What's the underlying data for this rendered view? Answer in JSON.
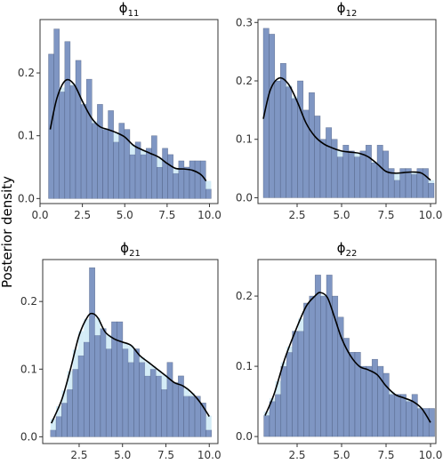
{
  "ylabel": "Posterior density",
  "colors": {
    "bar_fill": "#7f96c3",
    "bar_stroke": "#3b4a6b",
    "density_fill": "#cde9f6",
    "curve": "#000000",
    "panel_border": "#333333"
  },
  "chart_data": [
    {
      "type": "bar",
      "title_symbol": "ϕ",
      "title_sub": "11",
      "xlim": [
        0.0,
        10.5
      ],
      "ylim": [
        -0.008,
        0.285
      ],
      "xticks": [
        0.0,
        2.5,
        5.0,
        7.5,
        10.0
      ],
      "xtick_labels": [
        "0.0",
        "2.5",
        "5.0",
        "7.5",
        "10.0"
      ],
      "yticks": [
        0.0,
        0.1,
        0.2
      ],
      "ytick_labels": [
        "0.0",
        "0.1",
        "0.2"
      ],
      "bin_width": 0.32,
      "bin_starts": [
        0.5,
        0.82,
        1.14,
        1.46,
        1.78,
        2.1,
        2.42,
        2.74,
        3.06,
        3.38,
        3.7,
        4.02,
        4.34,
        4.66,
        4.98,
        5.3,
        5.62,
        5.94,
        6.26,
        6.58,
        6.9,
        7.22,
        7.54,
        7.86,
        8.18,
        8.5,
        8.82,
        9.14,
        9.46,
        9.78
      ],
      "bar_heights": [
        0.23,
        0.27,
        0.17,
        0.25,
        0.18,
        0.22,
        0.15,
        0.19,
        0.12,
        0.15,
        0.11,
        0.14,
        0.09,
        0.12,
        0.11,
        0.07,
        0.09,
        0.07,
        0.08,
        0.1,
        0.05,
        0.08,
        0.07,
        0.04,
        0.06,
        0.05,
        0.06,
        0.06,
        0.06,
        0.015
      ],
      "density_x": [
        0.6,
        1.0,
        1.5,
        2.0,
        2.5,
        3.0,
        3.5,
        4.0,
        4.5,
        5.0,
        5.5,
        6.0,
        6.5,
        7.0,
        7.5,
        8.0,
        8.5,
        9.0,
        9.5,
        9.8
      ],
      "density_y": [
        0.11,
        0.16,
        0.188,
        0.182,
        0.155,
        0.13,
        0.115,
        0.11,
        0.105,
        0.098,
        0.085,
        0.078,
        0.072,
        0.066,
        0.056,
        0.048,
        0.047,
        0.045,
        0.038,
        0.028
      ]
    },
    {
      "type": "bar",
      "title_symbol": "ϕ",
      "title_sub": "12",
      "xlim": [
        0.3,
        10.3
      ],
      "ylim": [
        -0.01,
        0.305
      ],
      "xticks": [
        2.5,
        5.0,
        7.5,
        10.0
      ],
      "xtick_labels": [
        "2.5",
        "5.0",
        "7.5",
        "10.0"
      ],
      "yticks": [
        0.0,
        0.1,
        0.2,
        0.3
      ],
      "ytick_labels": [
        "0.0",
        "0.1",
        "0.2",
        "0.3"
      ],
      "bin_width": 0.32,
      "bin_starts": [
        0.6,
        0.92,
        1.24,
        1.56,
        1.88,
        2.2,
        2.52,
        2.84,
        3.16,
        3.48,
        3.8,
        4.12,
        4.44,
        4.76,
        5.08,
        5.4,
        5.72,
        6.04,
        6.36,
        6.68,
        7.0,
        7.32,
        7.64,
        7.96,
        8.28,
        8.6,
        8.92,
        9.24,
        9.56,
        9.88
      ],
      "bar_heights": [
        0.29,
        0.28,
        0.2,
        0.23,
        0.19,
        0.17,
        0.2,
        0.15,
        0.18,
        0.14,
        0.1,
        0.12,
        0.1,
        0.07,
        0.09,
        0.08,
        0.07,
        0.08,
        0.09,
        0.06,
        0.09,
        0.08,
        0.05,
        0.03,
        0.05,
        0.05,
        0.04,
        0.05,
        0.05,
        0.025
      ],
      "density_x": [
        0.6,
        1.0,
        1.5,
        2.0,
        2.5,
        3.0,
        3.5,
        4.0,
        4.5,
        5.0,
        5.5,
        6.0,
        6.5,
        7.0,
        7.5,
        8.0,
        8.5,
        9.0,
        9.5,
        10.0
      ],
      "density_y": [
        0.135,
        0.185,
        0.205,
        0.195,
        0.165,
        0.128,
        0.105,
        0.092,
        0.085,
        0.08,
        0.078,
        0.076,
        0.07,
        0.058,
        0.045,
        0.042,
        0.043,
        0.044,
        0.042,
        0.03
      ]
    },
    {
      "type": "bar",
      "title_symbol": "ϕ",
      "title_sub": "21",
      "xlim": [
        0.4,
        10.5
      ],
      "ylim": [
        -0.01,
        0.262
      ],
      "xticks": [
        2.5,
        5.0,
        7.5,
        10.0
      ],
      "xtick_labels": [
        "2.5",
        "5.0",
        "7.5",
        "10.0"
      ],
      "yticks": [
        0.0,
        0.1,
        0.2
      ],
      "ytick_labels": [
        "0.0",
        "0.1",
        "0.2"
      ],
      "bin_width": 0.32,
      "bin_starts": [
        0.85,
        1.17,
        1.49,
        1.81,
        2.13,
        2.45,
        2.77,
        3.09,
        3.41,
        3.73,
        4.05,
        4.37,
        4.69,
        5.01,
        5.33,
        5.65,
        5.97,
        6.29,
        6.61,
        6.93,
        7.25,
        7.57,
        7.89,
        8.21,
        8.53,
        8.85,
        9.17,
        9.49,
        9.81
      ],
      "bar_heights": [
        0.01,
        0.03,
        0.05,
        0.07,
        0.1,
        0.12,
        0.14,
        0.25,
        0.15,
        0.16,
        0.13,
        0.17,
        0.17,
        0.13,
        0.11,
        0.13,
        0.11,
        0.09,
        0.1,
        0.09,
        0.07,
        0.11,
        0.08,
        0.09,
        0.06,
        0.06,
        0.06,
        0.05,
        0.01
      ],
      "density_x": [
        0.9,
        1.5,
        2.0,
        2.5,
        3.0,
        3.3,
        3.6,
        4.0,
        4.5,
        5.0,
        5.5,
        6.0,
        6.5,
        7.0,
        7.5,
        8.0,
        8.5,
        9.0,
        9.5,
        10.0
      ],
      "density_y": [
        0.02,
        0.055,
        0.1,
        0.15,
        0.178,
        0.182,
        0.175,
        0.155,
        0.145,
        0.14,
        0.135,
        0.12,
        0.11,
        0.1,
        0.09,
        0.08,
        0.075,
        0.065,
        0.05,
        0.03
      ]
    },
    {
      "type": "bar",
      "title_symbol": "ϕ",
      "title_sub": "22",
      "xlim": [
        0.3,
        10.3
      ],
      "ylim": [
        -0.01,
        0.252
      ],
      "xticks": [
        2.5,
        5.0,
        7.5,
        10.0
      ],
      "xtick_labels": [
        "2.5",
        "5.0",
        "7.5",
        "10.0"
      ],
      "yticks": [
        0.0,
        0.1,
        0.2
      ],
      "ytick_labels": [
        "0.0",
        "0.1",
        "0.2"
      ],
      "bin_width": 0.32,
      "bin_starts": [
        0.63,
        0.95,
        1.27,
        1.59,
        1.91,
        2.23,
        2.55,
        2.87,
        3.19,
        3.51,
        3.83,
        4.15,
        4.47,
        4.79,
        5.11,
        5.43,
        5.75,
        6.07,
        6.39,
        6.71,
        7.03,
        7.35,
        7.67,
        7.99,
        8.31,
        8.63,
        8.95,
        9.27,
        9.59,
        9.91
      ],
      "bar_heights": [
        0.03,
        0.05,
        0.06,
        0.1,
        0.12,
        0.15,
        0.15,
        0.19,
        0.2,
        0.23,
        0.2,
        0.23,
        0.2,
        0.17,
        0.14,
        0.12,
        0.12,
        0.1,
        0.1,
        0.11,
        0.1,
        0.09,
        0.06,
        0.06,
        0.06,
        0.05,
        0.06,
        0.04,
        0.04,
        0.04
      ],
      "density_x": [
        0.7,
        1.2,
        1.8,
        2.4,
        3.0,
        3.5,
        3.8,
        4.2,
        4.6,
        5.0,
        5.5,
        6.0,
        6.5,
        7.0,
        7.5,
        8.0,
        8.5,
        9.0,
        9.5,
        10.0
      ],
      "density_y": [
        0.03,
        0.06,
        0.11,
        0.15,
        0.185,
        0.2,
        0.205,
        0.198,
        0.17,
        0.14,
        0.115,
        0.1,
        0.095,
        0.088,
        0.072,
        0.06,
        0.055,
        0.05,
        0.04,
        0.02
      ]
    }
  ]
}
